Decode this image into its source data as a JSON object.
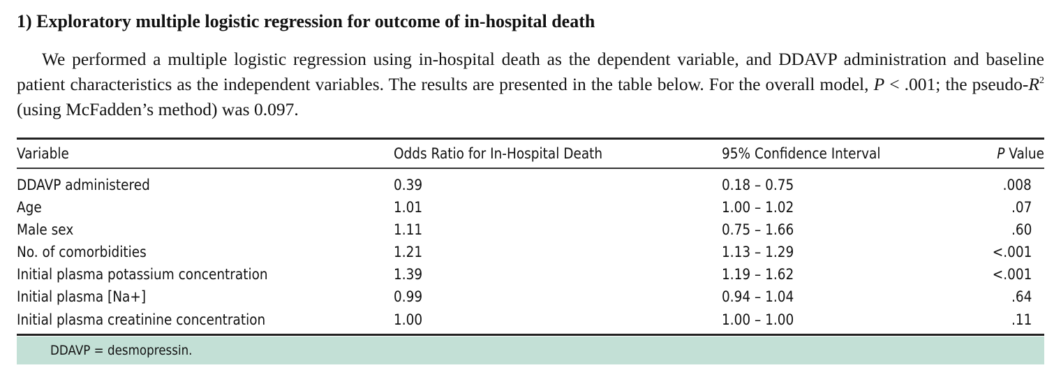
{
  "section": {
    "heading": "1)  Exploratory multiple logistic regression for outcome of in-hospital death",
    "paragraph": {
      "part1": "We performed a multiple logistic regression using in-hospital death as the dependent variable, and DDAVP administration and baseline patient characteristics as the independent variables. The results are presented in the table below. For the overall model, ",
      "p_symbol": "P",
      "part2": " < .001; the pseudo-",
      "r_symbol": "R",
      "r_sup": "2",
      "part3": " (using McFadden’s method) was 0.097."
    }
  },
  "table": {
    "headers": {
      "variable": "Variable",
      "odds_ratio": "Odds Ratio for In-Hospital Death",
      "ci": "95% Confidence Interval",
      "p_symbol": "P",
      "p_rest": " Value"
    },
    "rows": [
      {
        "variable": "DDAVP administered",
        "odds_ratio": "0.39",
        "ci": "0.18 – 0.75",
        "p": ".008"
      },
      {
        "variable": "Age",
        "odds_ratio": "1.01",
        "ci": "1.00 – 1.02",
        "p": ".07"
      },
      {
        "variable": "Male sex",
        "odds_ratio": "1.11",
        "ci": "0.75 – 1.66",
        "p": ".60"
      },
      {
        "variable": "No. of comorbidities",
        "odds_ratio": "1.21",
        "ci": "1.13 – 1.29",
        "p": "<.001"
      },
      {
        "variable": "Initial plasma potassium concentration",
        "odds_ratio": "1.39",
        "ci": "1.19 – 1.62",
        "p": "<.001"
      },
      {
        "variable": "Initial plasma [Na+]",
        "odds_ratio": "0.99",
        "ci": "0.94 – 1.04",
        "p": ".64"
      },
      {
        "variable": "Initial plasma creatinine concentration",
        "odds_ratio": "1.00",
        "ci": "1.00 – 1.00",
        "p": ".11"
      }
    ],
    "footnote": "DDAVP = desmopressin."
  },
  "colors": {
    "footnote_background": "#c3e0d6",
    "rule": "#222222",
    "text": "#111111"
  }
}
